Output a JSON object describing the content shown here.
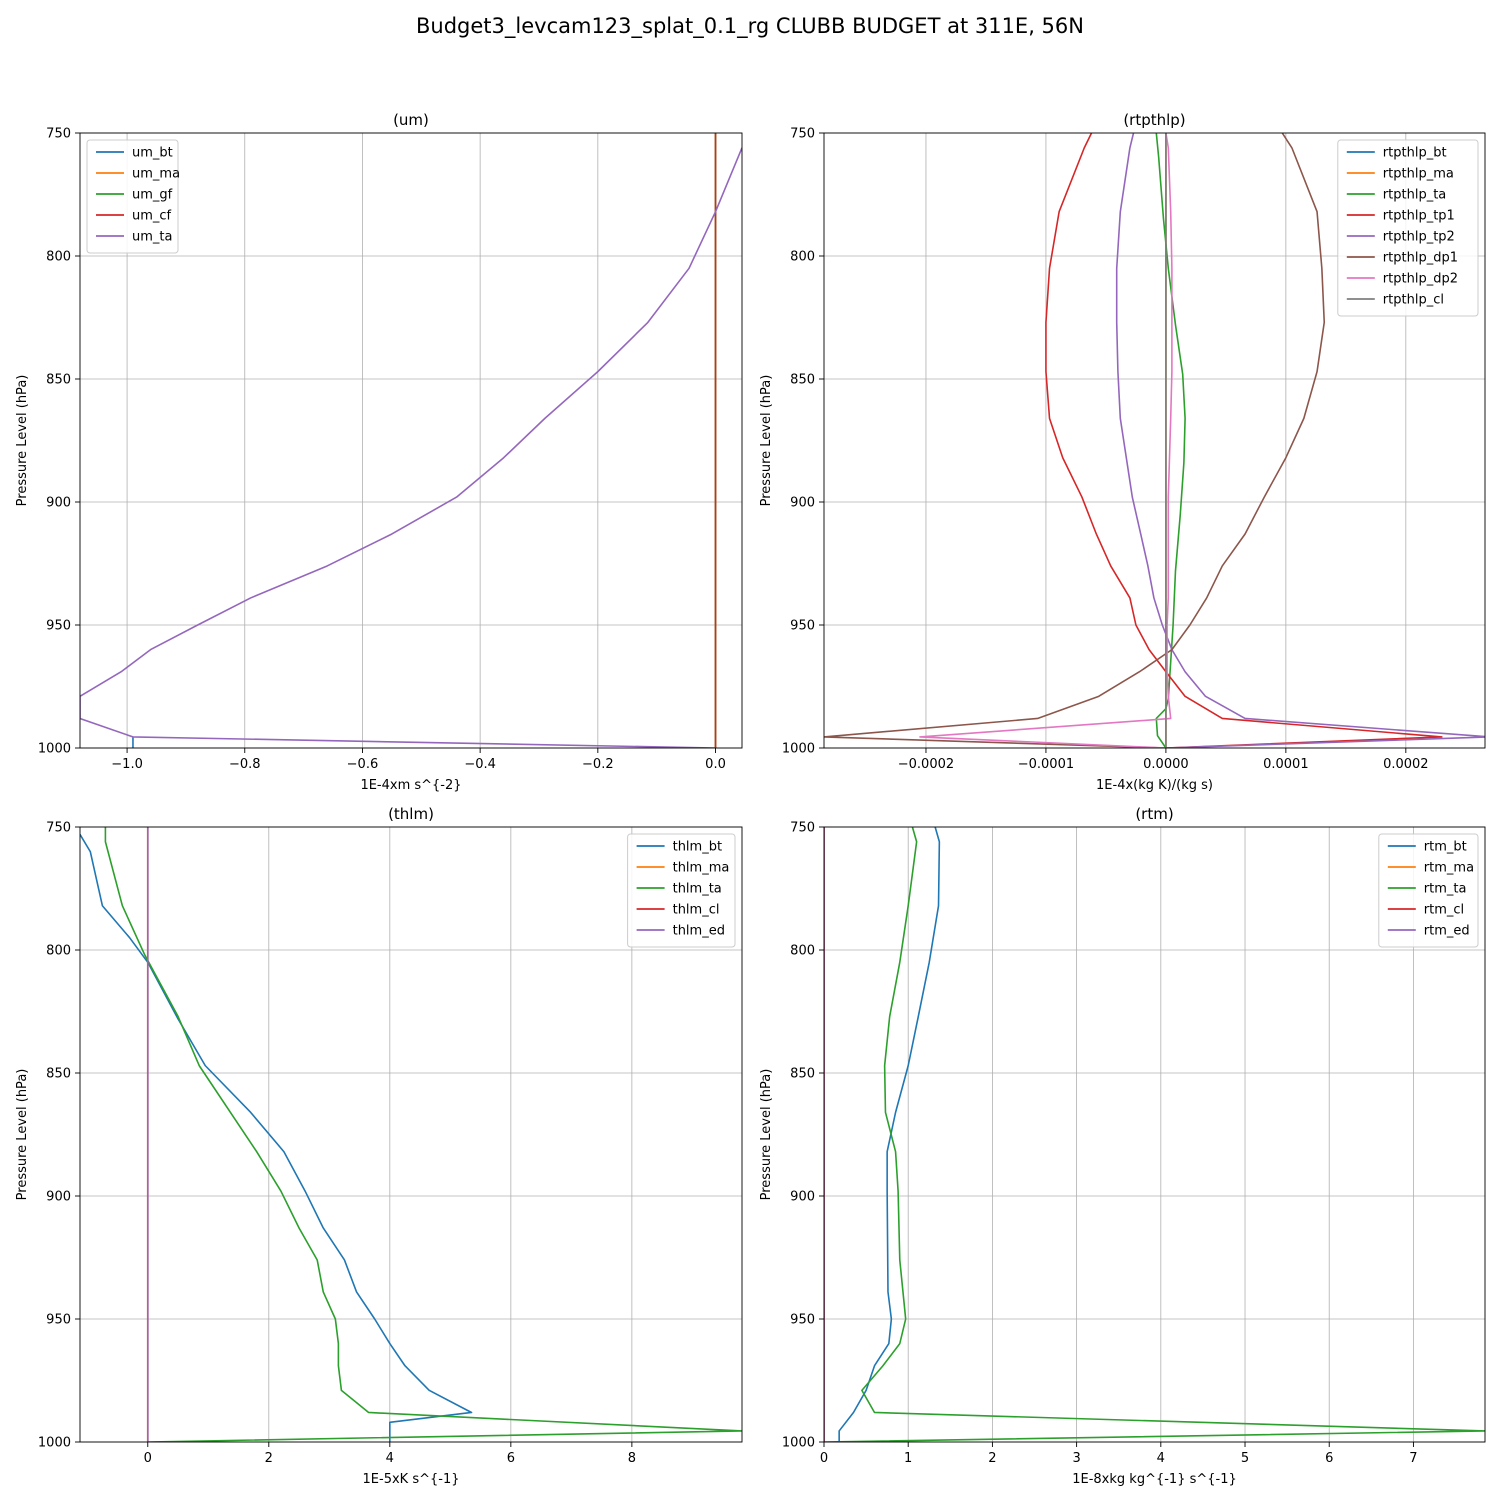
{
  "figure": {
    "suptitle": "Budget3_levcam123_splat_0.1_rg CLUBB BUDGET at 311E, 56N"
  },
  "colors": {
    "tab_blue": "#1f77b4",
    "tab_orange": "#ff7f0e",
    "tab_green": "#2ca02c",
    "tab_red": "#d62728",
    "tab_purple": "#9467bd",
    "tab_brown": "#8c564b",
    "tab_pink": "#e377c2",
    "tab_gray": "#7f7f7f"
  },
  "chart_data": [
    {
      "id": "um",
      "type": "line",
      "title": "(um)",
      "xlabel": "1E-4xm s^{-2}",
      "ylabel": "Pressure Level (hPa)",
      "xlim": [
        -1.08,
        0.045
      ],
      "ylim": [
        1000,
        750
      ],
      "xticks": [
        -1.0,
        -0.8,
        -0.6,
        -0.4,
        -0.2,
        0.0
      ],
      "xtick_labels": [
        "−1.0",
        "−0.8",
        "−0.6",
        "−0.4",
        "−0.2",
        "0.0"
      ],
      "yticks": [
        750,
        800,
        850,
        900,
        950,
        1000
      ],
      "ytick_labels": [
        "750",
        "800",
        "850",
        "900",
        "950",
        "1000"
      ],
      "grid": true,
      "legend": "upper-left",
      "series": [
        {
          "name": "um_bt",
          "color": "#1f77b4",
          "x": [
            -0.99,
            -0.99
          ],
          "y": [
            995.5,
            1000
          ]
        },
        {
          "name": "um_ma",
          "color": "#ff7f0e",
          "x": [
            0,
            0
          ],
          "y": [
            750,
            1000
          ]
        },
        {
          "name": "um_gf",
          "color": "#2ca02c",
          "x": [
            0,
            0
          ],
          "y": [
            750,
            1000
          ]
        },
        {
          "name": "um_cf",
          "color": "#d62728",
          "x": [
            0,
            0
          ],
          "y": [
            750,
            1000
          ]
        },
        {
          "name": "um_ta",
          "color": "#9467bd",
          "x": [
            0.045,
            0.0,
            -0.045,
            -0.115,
            -0.2,
            -0.29,
            -0.36,
            -0.44,
            -0.55,
            -0.66,
            -0.79,
            -0.88,
            -0.96,
            -1.01,
            -1.08,
            -1.08,
            -0.99,
            0.0
          ],
          "y": [
            756,
            782,
            805,
            827,
            847,
            866,
            882,
            898,
            913,
            926,
            939,
            950,
            960,
            969,
            979,
            988,
            995.5,
            1000
          ]
        }
      ]
    },
    {
      "id": "rtpthlp",
      "type": "line",
      "title": "(rtpthlp)",
      "xlabel": "1E-4x(kg K)/(kg s)",
      "ylabel": "Pressure Level (hPa)",
      "xlim": [
        -0.000285,
        0.000266
      ],
      "ylim": [
        1000,
        750
      ],
      "xticks": [
        -0.0002,
        -0.0001,
        0.0,
        0.0001,
        0.0002
      ],
      "xtick_labels": [
        "−0.0002",
        "−0.0001",
        "0.0000",
        "0.0001",
        "0.0002"
      ],
      "yticks": [
        750,
        800,
        850,
        900,
        950,
        1000
      ],
      "ytick_labels": [
        "750",
        "800",
        "850",
        "900",
        "950",
        "1000"
      ],
      "grid": true,
      "legend": "upper-right",
      "series": [
        {
          "name": "rtpthlp_bt",
          "color": "#1f77b4",
          "x": [
            0,
            0
          ],
          "y": [
            750,
            1000
          ]
        },
        {
          "name": "rtpthlp_ma",
          "color": "#ff7f0e",
          "x": [
            0,
            0
          ],
          "y": [
            750,
            1000
          ]
        },
        {
          "name": "rtpthlp_ta",
          "color": "#2ca02c",
          "x": [
            -8e-06,
            -6e-06,
            -2e-06,
            2e-06,
            8e-06,
            1.4e-05,
            1.6e-05,
            1.5e-05,
            1.2e-05,
            8e-06,
            6e-06,
            4e-06,
            2e-06,
            0.0,
            -8e-06,
            -7e-06,
            0.0
          ],
          "y": [
            750,
            760,
            785,
            805,
            828,
            848,
            866,
            884,
            905,
            928,
            950,
            965,
            980,
            984,
            988,
            995,
            1000
          ]
        },
        {
          "name": "rtpthlp_tp1",
          "color": "#d62728",
          "x": [
            -6.2e-05,
            -6.8e-05,
            -8.9e-05,
            -9.7e-05,
            -0.0001,
            -0.0001,
            -9.7e-05,
            -8.6e-05,
            -7e-05,
            -5.8e-05,
            -4.6e-05,
            -3e-05,
            -2.5e-05,
            -1.4e-05,
            0.0,
            1.6e-05,
            4.7e-05,
            0.00023,
            0.0
          ],
          "y": [
            750,
            756,
            782,
            805,
            827,
            847,
            866,
            882,
            898,
            913,
            926,
            939,
            950,
            960,
            969,
            979,
            988,
            995.5,
            1000
          ]
        },
        {
          "name": "rtpthlp_tp2",
          "color": "#9467bd",
          "x": [
            -2.7e-05,
            -3e-05,
            -3.8e-05,
            -4.1e-05,
            -4.1e-05,
            -4e-05,
            -3.8e-05,
            -3.3e-05,
            -2.8e-05,
            -2.1e-05,
            -1.5e-05,
            -1e-05,
            -3e-06,
            5e-06,
            1.6e-05,
            3.3e-05,
            6.6e-05,
            0.00027,
            0.0
          ],
          "y": [
            750,
            756,
            782,
            805,
            827,
            847,
            866,
            882,
            898,
            913,
            926,
            939,
            950,
            960,
            969,
            979,
            988,
            995.5,
            1000
          ]
        },
        {
          "name": "rtpthlp_dp1",
          "color": "#8c564b",
          "x": [
            9.7e-05,
            0.000105,
            0.000126,
            0.00013,
            0.000132,
            0.000126,
            0.000115,
            0.0001,
            8.2e-05,
            6.6e-05,
            4.7e-05,
            3.4e-05,
            2e-05,
            5e-06,
            -2.2e-05,
            -5.6e-05,
            -0.000107,
            -0.000285,
            0.0
          ],
          "y": [
            750,
            756,
            782,
            805,
            827,
            847,
            866,
            882,
            898,
            913,
            926,
            939,
            950,
            960,
            969,
            979,
            988,
            995.5,
            1000
          ]
        },
        {
          "name": "rtpthlp_dp2",
          "color": "#e377c2",
          "x": [
            0.0,
            2e-06,
            4e-06,
            5e-06,
            5e-06,
            5e-06,
            4e-06,
            3e-06,
            2e-06,
            2e-06,
            2e-06,
            2e-06,
            1e-06,
            1e-06,
            1e-06,
            2e-06,
            4e-06,
            -0.000205,
            0.0
          ],
          "y": [
            750,
            756,
            782,
            805,
            827,
            847,
            866,
            882,
            898,
            913,
            926,
            939,
            950,
            960,
            969,
            979,
            988,
            995.5,
            1000
          ]
        },
        {
          "name": "rtpthlp_cl",
          "color": "#7f7f7f",
          "x": [
            0,
            0
          ],
          "y": [
            750,
            1000
          ]
        }
      ]
    },
    {
      "id": "thlm",
      "type": "line",
      "title": "(thlm)",
      "xlabel": "1E-5xK s^{-1}",
      "ylabel": "Pressure Level (hPa)",
      "xlim": [
        -1.12,
        9.82
      ],
      "ylim": [
        1000,
        750
      ],
      "xticks": [
        0,
        2,
        4,
        6,
        8
      ],
      "xtick_labels": [
        "0",
        "2",
        "4",
        "6",
        "8"
      ],
      "yticks": [
        750,
        800,
        850,
        900,
        950,
        1000
      ],
      "ytick_labels": [
        "750",
        "800",
        "850",
        "900",
        "950",
        "1000"
      ],
      "grid": true,
      "legend": "upper-right",
      "series": [
        {
          "name": "thlm_bt",
          "color": "#1f77b4",
          "x": [
            -1.12,
            -0.95,
            -0.75,
            -0.3,
            0.0,
            0.5,
            0.95,
            1.7,
            2.25,
            2.6,
            2.9,
            3.25,
            3.45,
            3.75,
            4.0,
            4.25,
            4.65,
            5.35,
            4.0,
            4.0
          ],
          "y": [
            753,
            760,
            782,
            795,
            805,
            828,
            847,
            866,
            882,
            898,
            913,
            926,
            939,
            950,
            960,
            969,
            979,
            988,
            992,
            1000
          ]
        },
        {
          "name": "thlm_ma",
          "color": "#ff7f0e",
          "x": [
            0,
            0
          ],
          "y": [
            750,
            1000
          ]
        },
        {
          "name": "thlm_ta",
          "color": "#2ca02c",
          "x": [
            -0.7,
            -0.7,
            -0.42,
            -0.05,
            0.5,
            0.85,
            1.8,
            2.2,
            2.5,
            2.8,
            2.9,
            3.1,
            3.15,
            3.15,
            3.2,
            3.65,
            9.82,
            0.0
          ],
          "y": [
            750,
            756,
            782,
            802,
            827,
            847,
            882,
            898,
            913,
            926,
            939,
            950,
            960,
            969,
            979,
            988,
            995.5,
            1000
          ]
        },
        {
          "name": "thlm_cl",
          "color": "#d62728",
          "x": [
            0,
            0
          ],
          "y": [
            750,
            1000
          ]
        },
        {
          "name": "thlm_ed",
          "color": "#9467bd",
          "x": [
            0,
            0
          ],
          "y": [
            750,
            1000
          ]
        }
      ]
    },
    {
      "id": "rtm",
      "type": "line",
      "title": "(rtm)",
      "xlabel": "1E-8xkg kg^{-1} s^{-1}",
      "ylabel": "Pressure Level (hPa)",
      "xlim": [
        0,
        7.85
      ],
      "ylim": [
        1000,
        750
      ],
      "xticks": [
        0,
        1,
        2,
        3,
        4,
        5,
        6,
        7
      ],
      "xtick_labels": [
        "0",
        "1",
        "2",
        "3",
        "4",
        "5",
        "6",
        "7"
      ],
      "yticks": [
        750,
        800,
        850,
        900,
        950,
        1000
      ],
      "ytick_labels": [
        "750",
        "800",
        "850",
        "900",
        "950",
        "1000"
      ],
      "grid": true,
      "legend": "upper-right",
      "series": [
        {
          "name": "rtm_bt",
          "color": "#1f77b4",
          "x": [
            1.32,
            1.37,
            1.36,
            1.25,
            1.12,
            1.0,
            0.85,
            0.75,
            0.75,
            0.76,
            0.8,
            0.77,
            0.6,
            0.5,
            0.35,
            0.18,
            0.18
          ],
          "y": [
            750,
            756,
            782,
            805,
            827,
            847,
            866,
            882,
            898,
            939,
            950,
            960,
            969,
            979,
            988,
            995.5,
            1000
          ]
        },
        {
          "name": "rtm_ma",
          "color": "#ff7f0e",
          "x": [
            0,
            0
          ],
          "y": [
            750,
            1000
          ]
        },
        {
          "name": "rtm_ta",
          "color": "#2ca02c",
          "x": [
            1.05,
            1.1,
            1.0,
            0.9,
            0.78,
            0.72,
            0.73,
            0.85,
            0.88,
            0.9,
            0.97,
            0.9,
            0.7,
            0.45,
            0.6,
            7.85,
            0.0
          ],
          "y": [
            750,
            756,
            782,
            805,
            827,
            847,
            866,
            882,
            898,
            926,
            950,
            960,
            969,
            979,
            988,
            995.5,
            1000
          ]
        },
        {
          "name": "rtm_cl",
          "color": "#d62728",
          "x": [
            0,
            0
          ],
          "y": [
            750,
            1000
          ]
        },
        {
          "name": "rtm_ed",
          "color": "#9467bd",
          "x": [
            0,
            0
          ],
          "y": [
            750,
            1000
          ]
        }
      ]
    }
  ]
}
